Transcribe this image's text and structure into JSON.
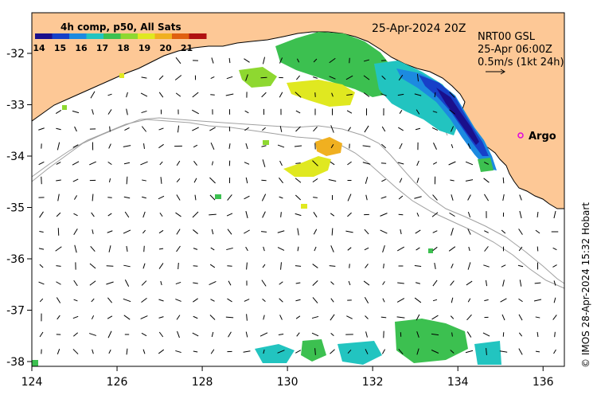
{
  "map": {
    "title_date": "25-Apr-2024 20Z",
    "colorbar_title": "4h comp, p50, All Sats",
    "colorbar_labels": [
      "14",
      "15",
      "16",
      "17",
      "18",
      "19",
      "20",
      "21"
    ],
    "product_lines": [
      "NRT00 GSL",
      "25-Apr 06:00Z",
      "0.5m/s (1kt 24h)"
    ],
    "argo_label": "Argo",
    "credit": "© IMOS 28-Apr-2024 15:32 Hobart",
    "x_ticks": [
      "124",
      "126",
      "128",
      "130",
      "132",
      "134",
      "136"
    ],
    "y_ticks": [
      "-32",
      "-33",
      "-34",
      "-35",
      "-36",
      "-37",
      "-38"
    ],
    "colors": {
      "land": "#fdc896",
      "sea": "#ffffff",
      "isobath": "#a0a0a0",
      "argo": "#e000e0",
      "colorbar": [
        "#1a0f8c",
        "#1740c8",
        "#1c8ae0",
        "#22c4c0",
        "#3cc050",
        "#8ed830",
        "#e0e820",
        "#f0b020",
        "#e06010",
        "#b01010"
      ]
    }
  }
}
